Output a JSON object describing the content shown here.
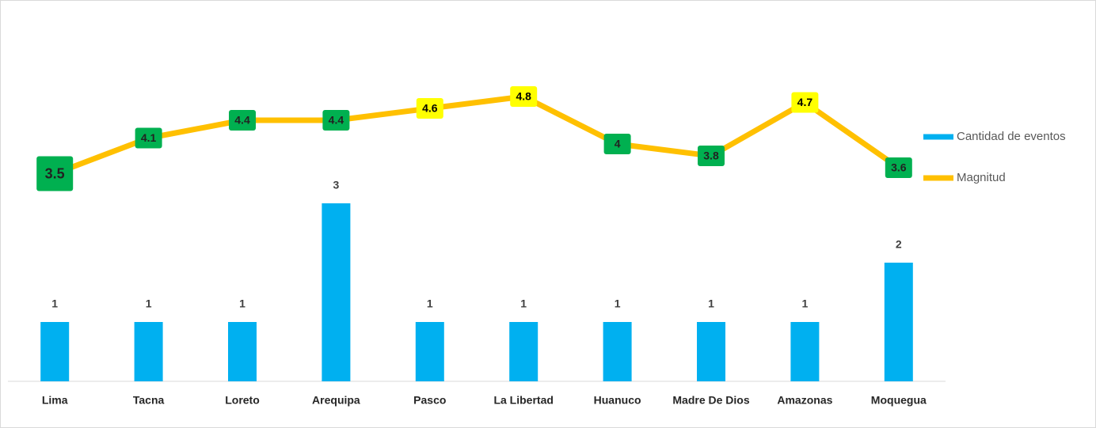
{
  "chart_data": {
    "type": "bar-line",
    "categories": [
      "Lima",
      "Tacna",
      "Loreto",
      "Arequipa",
      "Pasco",
      "La Libertad",
      "Huanuco",
      "Madre De Dios",
      "Amazonas",
      "Moquegua"
    ],
    "series": [
      {
        "name": "Cantidad de eventos",
        "type": "bar",
        "color": "#00b0f0",
        "values": [
          1,
          1,
          1,
          3,
          1,
          1,
          1,
          1,
          1,
          2
        ]
      },
      {
        "name": "Magnitud",
        "type": "line",
        "axis": "y2",
        "color": "#ffc000",
        "values": [
          3.5,
          4.1,
          4.4,
          4.4,
          4.6,
          4.8,
          4.0,
          3.8,
          4.7,
          3.6
        ],
        "label_colors": [
          "#00b050",
          "#00b050",
          "#00b050",
          "#00b050",
          "#ffff00",
          "#ffff00",
          "#00b050",
          "#00b050",
          "#ffff00",
          "#00b050"
        ]
      }
    ],
    "ylim": [
      0,
      6
    ],
    "y2lim": [
      0,
      6
    ],
    "legend": "right"
  }
}
